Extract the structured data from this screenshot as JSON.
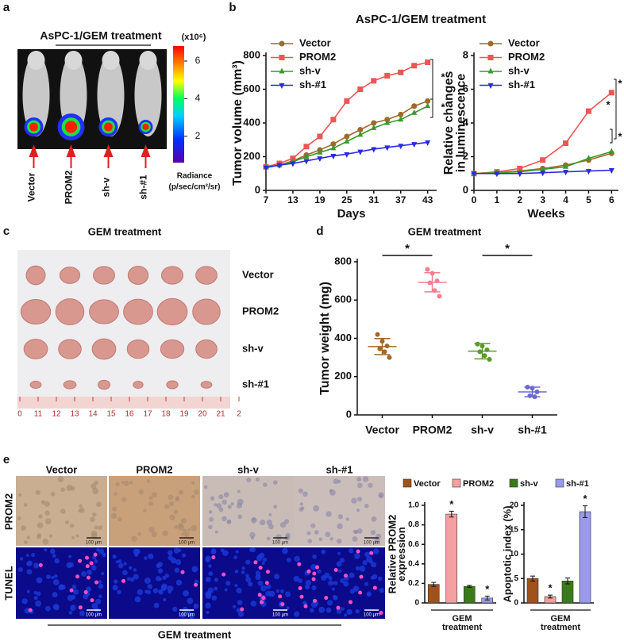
{
  "panel_labels": [
    "a",
    "b",
    "c",
    "d",
    "e"
  ],
  "panel_a": {
    "title": "AsPC-1/GEM treatment",
    "colorbar_unit": "(x10⁶)",
    "colorbar_ticks": [
      2,
      4,
      6
    ],
    "colorbar_lim": [
      0.6,
      6.8
    ],
    "colorbar_label": [
      "Radiance",
      "(p/sec/cm²/sr)"
    ],
    "groups": [
      "Vector",
      "PROM2",
      "sh-v",
      "sh-#1"
    ]
  },
  "panel_c": {
    "title": "GEM treatment",
    "rows": [
      "Vector",
      "PROM2",
      "sh-v",
      "sh-#1"
    ],
    "ruler": [
      "0",
      "11",
      "12",
      "13",
      "14",
      "15",
      "16",
      "17",
      "18",
      "19",
      "20",
      "21",
      "2"
    ]
  },
  "panel_e": {
    "columns": [
      "Vector",
      "PROM2",
      "sh-v",
      "sh-#1"
    ],
    "rows": [
      "PROM2",
      "TUNEL"
    ],
    "scale_bar": "100 µm",
    "footer": "GEM treatment"
  },
  "chart_data": [
    {
      "type": "line",
      "title": "AsPC-1/GEM treatment",
      "xlabel": "Days",
      "ylabel": [
        "Tumor volume (mm³)"
      ],
      "x": [
        7,
        10,
        13,
        16,
        19,
        22,
        25,
        28,
        31,
        34,
        37,
        40,
        43
      ],
      "xlim": [
        7,
        45
      ],
      "xticks": [
        7,
        13,
        19,
        25,
        31,
        37,
        43
      ],
      "ylim": [
        0,
        800
      ],
      "yticks": [
        0,
        200,
        400,
        600,
        800
      ],
      "annotations": [
        "*",
        "*"
      ],
      "series": [
        {
          "name": "Vector",
          "color": "#a0692a",
          "marker": "circle",
          "values": [
            140,
            150,
            175,
            210,
            240,
            275,
            320,
            360,
            400,
            420,
            450,
            500,
            530
          ]
        },
        {
          "name": "PROM2",
          "color": "#ee5555",
          "marker": "square",
          "values": [
            140,
            160,
            190,
            260,
            320,
            420,
            530,
            600,
            650,
            680,
            700,
            740,
            760
          ]
        },
        {
          "name": "sh-v",
          "color": "#3a9a2a",
          "marker": "triangle",
          "values": [
            140,
            150,
            170,
            200,
            225,
            250,
            290,
            330,
            370,
            400,
            420,
            460,
            500
          ]
        },
        {
          "name": "sh-#1",
          "color": "#2a2ae0",
          "marker": "triangle-down",
          "values": [
            135,
            150,
            160,
            175,
            190,
            205,
            215,
            230,
            245,
            255,
            265,
            275,
            285
          ]
        }
      ]
    },
    {
      "type": "line",
      "xlabel": "Weeks",
      "ylabel": [
        "Relative changes",
        "in luminescence"
      ],
      "x": [
        0,
        1,
        2,
        3,
        4,
        5,
        6
      ],
      "xlim": [
        0,
        6.3
      ],
      "xticks": [
        0,
        1,
        2,
        3,
        4,
        5,
        6
      ],
      "ylim": [
        0,
        8
      ],
      "yticks": [
        0,
        2,
        4,
        6,
        8
      ],
      "annotations": [
        "*",
        "*",
        "*"
      ],
      "series": [
        {
          "name": "Vector",
          "color": "#a0692a",
          "marker": "circle",
          "values": [
            1,
            1.05,
            1.15,
            1.3,
            1.5,
            1.8,
            2.2
          ]
        },
        {
          "name": "PROM2",
          "color": "#ee5555",
          "marker": "square",
          "values": [
            1,
            1.1,
            1.3,
            1.8,
            2.8,
            4.7,
            5.8
          ]
        },
        {
          "name": "sh-v",
          "color": "#3a9a2a",
          "marker": "triangle",
          "values": [
            1,
            1.05,
            1.1,
            1.25,
            1.4,
            1.9,
            2.3
          ]
        },
        {
          "name": "sh-#1",
          "color": "#2a2ae0",
          "marker": "triangle-down",
          "values": [
            1,
            1,
            1,
            1.05,
            1.1,
            1.15,
            1.2
          ]
        }
      ]
    },
    {
      "type": "dotplot",
      "title": "GEM treatment",
      "ylabel": [
        "Tumor weight (mg)"
      ],
      "categories": [
        "Vector",
        "PROM2",
        "sh-v",
        "sh-#1"
      ],
      "colors": [
        "#a0692a",
        "#f07f90",
        "#5a9a2a",
        "#6a6ad0"
      ],
      "points": [
        [
          420,
          385,
          360,
          345,
          330,
          300
        ],
        [
          760,
          740,
          700,
          690,
          650,
          620
        ],
        [
          370,
          360,
          340,
          330,
          310,
          290
        ],
        [
          145,
          140,
          120,
          100,
          95
        ]
      ],
      "means": [
        357,
        693,
        333,
        120
      ],
      "errors": [
        42,
        50,
        40,
        25
      ],
      "ylim": [
        0,
        800
      ],
      "yticks": [
        0,
        200,
        400,
        600,
        800
      ],
      "annotations": [
        "*",
        "*"
      ]
    },
    {
      "type": "bar",
      "ylabel": [
        "Relative PROM2",
        "expression"
      ],
      "xlabel": [
        "GEM",
        "treatment"
      ],
      "categories": [
        "Vector",
        "PROM2",
        "sh-v",
        "sh-#1"
      ],
      "colors": [
        "#a0521a",
        "#f4a0a0",
        "#3a7a1a",
        "#9999ee"
      ],
      "values": [
        0.19,
        0.91,
        0.17,
        0.05
      ],
      "errors": [
        0.02,
        0.03,
        0.01,
        0.02
      ],
      "ylim": [
        0,
        1.0
      ],
      "yticks": [
        0,
        0.2,
        0.4,
        0.6,
        0.8,
        {
          "value": 1.0,
          "label": "1.0"
        }
      ],
      "annotations": [
        "*",
        "*"
      ]
    },
    {
      "type": "bar",
      "ylabel": [
        "Apoptotic index (%)"
      ],
      "xlabel": [
        "GEM",
        "treatment"
      ],
      "colors": [
        "#a0521a",
        "#f4a0a0",
        "#3a7a1a",
        "#9999ee"
      ],
      "values": [
        5,
        1.3,
        4.5,
        18.7
      ],
      "errors": [
        0.5,
        0.3,
        0.6,
        1.2
      ],
      "ylim": [
        0,
        20
      ],
      "yticks": [
        0,
        5,
        10,
        15,
        20
      ],
      "annotations": [
        "*",
        "*"
      ]
    }
  ]
}
